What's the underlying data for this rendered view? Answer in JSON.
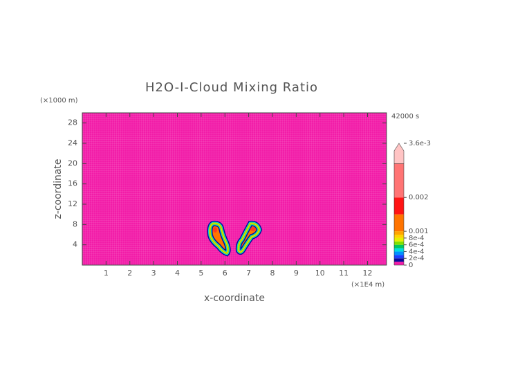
{
  "chart_data": {
    "type": "contour",
    "title": "H2O-I-Cloud Mixing Ratio",
    "time_label": "42000 s",
    "x_label": "x-coordinate",
    "y_label": "z-coordinate",
    "x_unit": "(×1E4 m)",
    "y_unit": "(×1000 m)",
    "background_color": "#f21ca8",
    "xlim": [
      0,
      12.8
    ],
    "xticks": [
      1,
      2,
      3,
      4,
      5,
      6,
      7,
      8,
      9,
      10,
      11,
      12
    ],
    "ylim": [
      0,
      30
    ],
    "yticks": [
      4,
      8,
      12,
      16,
      20,
      24,
      28
    ],
    "colorbar": {
      "lim": [
        0,
        0.0036
      ],
      "ticks": [
        0,
        0.0002,
        0.0004,
        0.0006,
        0.0008,
        0.001,
        0.002,
        0.0036
      ],
      "tick_labels": [
        "0",
        "2e-4",
        "4e-4",
        "6e-4",
        "8e-4",
        "0.001",
        "0.002",
        "3.6e-3"
      ],
      "levels": [
        0,
        0.0001,
        0.0002,
        0.0003,
        0.0004,
        0.0005,
        0.0006,
        0.0007,
        0.0008,
        0.0009,
        0.001,
        0.0015,
        0.002,
        0.003,
        0.0036
      ],
      "colors": [
        "#f21ca8",
        "#0a0a9a",
        "#1a40ff",
        "#0090ff",
        "#00dede",
        "#00c860",
        "#80e000",
        "#e6f000",
        "#ffd200",
        "#ffa400",
        "#ff7400",
        "#ff1414",
        "#ff7474",
        "#ffc4c4"
      ]
    }
  }
}
